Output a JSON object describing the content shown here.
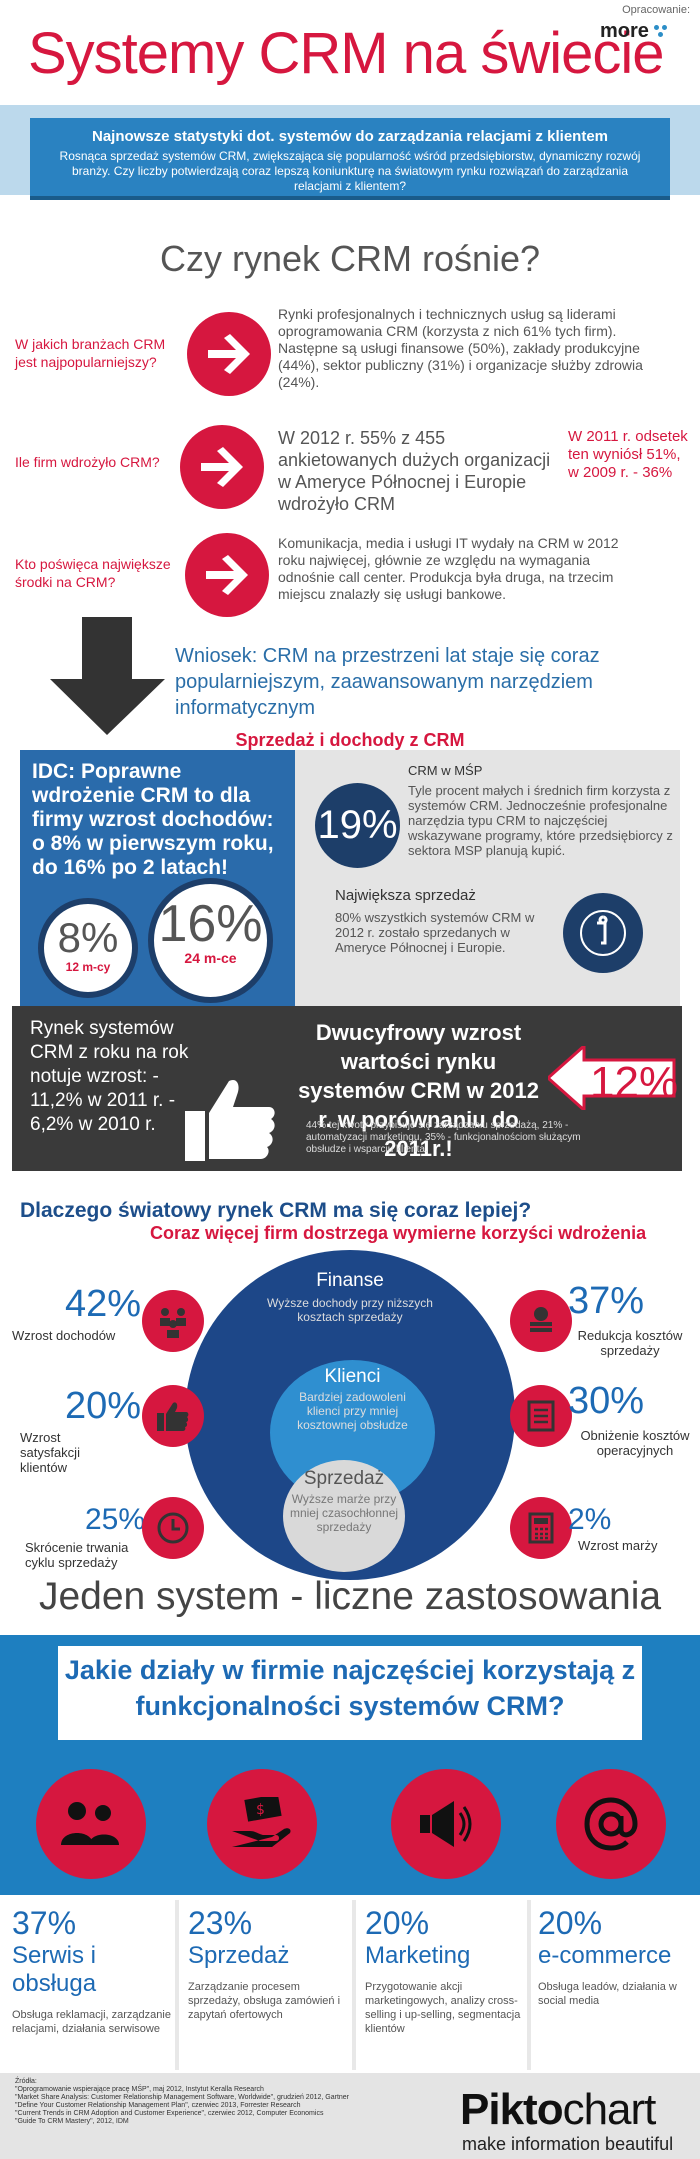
{
  "header": {
    "title": "Systemy CRM na świecie",
    "credit": "Opracowanie:",
    "logo": "more"
  },
  "intro": {
    "title": "Najnowsze statystyki dot. systemów do zarządzania relacjami z klientem",
    "text": "Rosnąca sprzedaż systemów CRM, zwiększająca się popularność wśród przedsiębiorstw, dynamiczny rozwój branży. Czy liczby potwierdzają coraz lepszą koniunkturę na światowym rynku rozwiązań do zarządzania relacjami z klientem?"
  },
  "growth_section": {
    "title": "Czy rynek CRM rośnie?",
    "rows": [
      {
        "question": "W jakich branżach CRM jest najpopularniejszy?",
        "answer": "Rynki profesjonalnych i technicznych usług są liderami oprogramowania CRM (korzysta z nich 61% tych firm). Następne są usługi finansowe (50%), zakłady produkcyjne (44%), sektor publiczny (31%) i organizacje służby zdrowia (24%)."
      },
      {
        "question": "Ile firm wdrożyło CRM?",
        "answer": "W 2012 r. 55% z 455 ankietowanych dużych organizacji w Ameryce Północnej i Europie wdrożyło CRM",
        "side_note": "W 2011 r. odsetek ten wyniósł 51%, w 2009 r. - 36%"
      },
      {
        "question": "Kto poświęca największe środki na CRM?",
        "answer": "Komunikacja, media i usługi IT wydały na CRM w 2012 roku najwięcej, głównie ze względu na wymagania odnośnie call center. Produkcja była druga, na trzecim miejscu znalazły się usługi bankowe."
      }
    ],
    "conclusion": "Wniosek: CRM na przestrzeni lat staje się coraz popularniejszym, zaawansowanym narzędziem informatycznym"
  },
  "sales": {
    "title": "Sprzedaż i dochody z CRM",
    "idc": {
      "text": "IDC: Poprawne wdrożenie CRM to dla firmy wzrost dochodów: o 8% w pierwszym roku, do 16% po 2 latach!",
      "stat1": {
        "value": "8%",
        "label": "12 m-cy"
      },
      "stat2": {
        "value": "16%",
        "label": "24 m-ce"
      }
    },
    "msp": {
      "value": "19%",
      "title": "CRM w MŚP",
      "text": "Tyle procent małych i średnich firm korzysta z systemów CRM. Jednocześnie profesjonalne narzędzia typu CRM to najczęściej wskazywane programy, które przedsiębiorcy z sektora MSP planują kupić."
    },
    "biggest": {
      "title": "Największa sprzedaż",
      "text": "80% wszystkich systemów CRM w 2012 r. zostało sprzedanych w Ameryce Północnej i Europie."
    },
    "market": {
      "text": "Rynek systemów CRM z roku na rok notuje wzrost: - 11,2% w 2011 r. - 6,2% w 2010 r."
    },
    "double_digit": {
      "headline": "Dwucyfrowy wzrost wartości rynku systemów CRM w 2012 r. w porównaniu do 2011r.!",
      "notes": "44% tej kwoty przypisuje się zarządzaniu sprzedażą, 21% - automatyzacji marketingu, 35% - funkcjonalnościom służącym obsłudze i wsparciu klienta.",
      "value": "12%"
    }
  },
  "why": {
    "title": "Dlaczego światowy rynek CRM ma się coraz lepiej?",
    "subtitle": "Coraz więcej firm dostrzega wymierne korzyści wdrożenia",
    "rings": {
      "outer": {
        "title": "Finanse",
        "text": "Wyższe dochody przy niższych kosztach sprzedaży"
      },
      "middle": {
        "title": "Klienci",
        "text": "Bardziej zadowoleni klienci przy mniej kosztownej obsłudze"
      },
      "inner": {
        "title": "Sprzedaż",
        "text": "Wyższe marże przy mniej czasochłonnej sprzedaży"
      }
    },
    "left": [
      {
        "pct": "42%",
        "label": "Wzrost dochodów"
      },
      {
        "pct": "20%",
        "label": "Wzrost satysfakcji klientów"
      },
      {
        "pct": "25%",
        "label": "Skrócenie trwania cyklu sprzedaży"
      }
    ],
    "right": [
      {
        "pct": "37%",
        "label": "Redukcja kosztów sprzedaży"
      },
      {
        "pct": "30%",
        "label": "Obniżenie kosztów operacyjnych"
      },
      {
        "pct": "2%",
        "label": "Wzrost marży"
      }
    ]
  },
  "one_system": "Jeden system - liczne zastosowania",
  "departments": {
    "title": "Jakie działy w firmie najczęściej korzystają z funkcjonalności systemów CRM?",
    "items": [
      {
        "pct": "37%",
        "name": "Serwis i obsługa",
        "text": "Obsługa reklamacji, zarządzanie relacjami, działania serwisowe",
        "icon": "people-icon"
      },
      {
        "pct": "23%",
        "name": "Sprzedaż",
        "text": "Zarządzanie procesem sprzedaży, obsługa zamówień i zapytań ofertowych",
        "icon": "money-hand-icon"
      },
      {
        "pct": "20%",
        "name": "Marketing",
        "text": "Przygotowanie akcji marketingowych, analizy cross-selling i up-selling, segmentacja klientów",
        "icon": "megaphone-icon"
      },
      {
        "pct": "20%",
        "name": "e-commerce",
        "text": "Obsługa leadów, działania w social media",
        "icon": "at-icon"
      }
    ]
  },
  "footer": {
    "sources_title": "Źródła:",
    "sources": [
      "\"Oprogramowanie wspierające pracę MŚP\", maj 2012, Instytut Keralla Research",
      "\"Market Share Analysis: Customer Relationship Management Software, Worldwide\", grudzień 2012, Gartner",
      "\"Define Your Customer Relationship Management Plan\", czerwiec 2013, Forrester Research",
      "\"Current Trends in CRM Adoption and Customer Experience\", czerwiec 2012, Computer Economics",
      "\"Guide To CRM Mastery\", 2012, IDM"
    ],
    "brand_a": "Pikto",
    "brand_b": "chart",
    "tagline": "make information beautiful"
  },
  "colors": {
    "red": "#d6173f",
    "blue": "#2a82c1",
    "navy": "#1d3e69",
    "dark": "#3a3a3a"
  }
}
